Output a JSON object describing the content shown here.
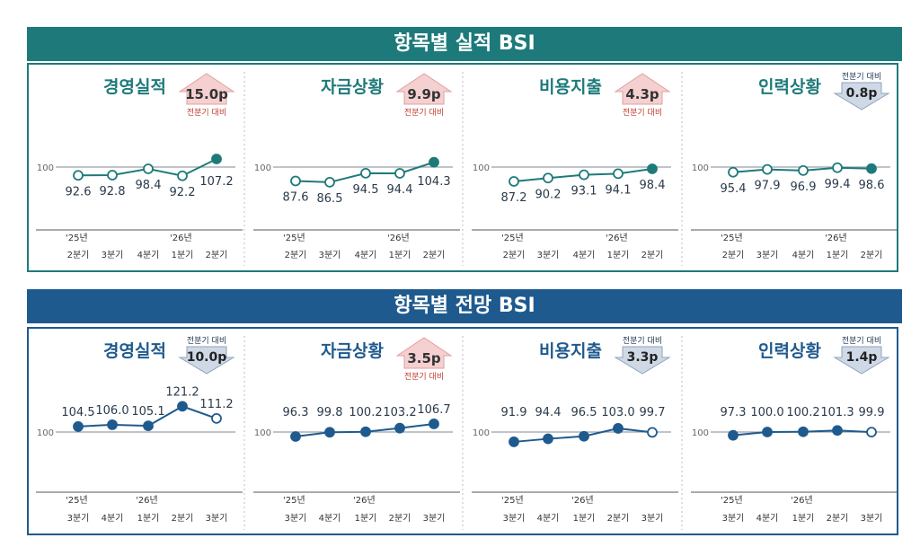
{
  "sections": [
    {
      "title": "항목별 실적 BSI",
      "color": "#1e7a7a",
      "axis_label": "100",
      "chart_data": [
        {
          "type": "line",
          "title": "경영실적",
          "change": {
            "direction": "up",
            "value": "15.0p",
            "label": "전분기 대비"
          },
          "categories": [
            "'25년 2분기",
            "3분기",
            "4분기",
            "'26년 1분기",
            "2분기"
          ],
          "year_labels": [
            "'25년",
            "",
            "",
            "'26년",
            ""
          ],
          "quarter_labels": [
            "2분기",
            "3분기",
            "4분기",
            "1분기",
            "2분기"
          ],
          "values": [
            92.6,
            92.8,
            98.4,
            92.2,
            107.2
          ],
          "reference": 100
        },
        {
          "type": "line",
          "title": "자금상황",
          "change": {
            "direction": "up",
            "value": "9.9p",
            "label": "전분기 대비"
          },
          "categories": [
            "'25년 2분기",
            "3분기",
            "4분기",
            "'26년 1분기",
            "2분기"
          ],
          "year_labels": [
            "'25년",
            "",
            "",
            "'26년",
            ""
          ],
          "quarter_labels": [
            "2분기",
            "3분기",
            "4분기",
            "1분기",
            "2분기"
          ],
          "values": [
            87.6,
            86.5,
            94.5,
            94.4,
            104.3
          ],
          "reference": 100
        },
        {
          "type": "line",
          "title": "비용지출",
          "change": {
            "direction": "up",
            "value": "4.3p",
            "label": "전분기 대비"
          },
          "categories": [
            "'25년 2분기",
            "3분기",
            "4분기",
            "'26년 1분기",
            "2분기"
          ],
          "year_labels": [
            "'25년",
            "",
            "",
            "'26년",
            ""
          ],
          "quarter_labels": [
            "2분기",
            "3분기",
            "4분기",
            "1분기",
            "2분기"
          ],
          "values": [
            87.2,
            90.2,
            93.1,
            94.1,
            98.4
          ],
          "reference": 100
        },
        {
          "type": "line",
          "title": "인력상황",
          "change": {
            "direction": "down",
            "value": "0.8p",
            "label": "전분기 대비"
          },
          "categories": [
            "'25년 2분기",
            "3분기",
            "4분기",
            "'26년 1분기",
            "2분기"
          ],
          "year_labels": [
            "'25년",
            "",
            "",
            "'26년",
            ""
          ],
          "quarter_labels": [
            "2분기",
            "3분기",
            "4분기",
            "1분기",
            "2분기"
          ],
          "values": [
            95.4,
            97.9,
            96.9,
            99.4,
            98.6
          ],
          "reference": 100
        }
      ]
    },
    {
      "title": "항목별 전망 BSI",
      "color": "#1f5a8e",
      "axis_label": "100",
      "chart_data": [
        {
          "type": "line",
          "title": "경영실적",
          "change": {
            "direction": "down",
            "value": "10.0p",
            "label": "전분기 대비"
          },
          "categories": [
            "'25년 3분기",
            "4분기",
            "'26년 1분기",
            "2분기",
            "3분기"
          ],
          "year_labels": [
            "'25년",
            "",
            "'26년",
            "",
            ""
          ],
          "quarter_labels": [
            "3분기",
            "4분기",
            "1분기",
            "2분기",
            "3분기"
          ],
          "values": [
            104.5,
            106.0,
            105.1,
            121.2,
            111.2
          ],
          "reference": 100
        },
        {
          "type": "line",
          "title": "자금상황",
          "change": {
            "direction": "up",
            "value": "3.5p",
            "label": "전분기 대비"
          },
          "categories": [
            "'25년 3분기",
            "4분기",
            "'26년 1분기",
            "2분기",
            "3분기"
          ],
          "year_labels": [
            "'25년",
            "",
            "'26년",
            "",
            ""
          ],
          "quarter_labels": [
            "3분기",
            "4분기",
            "1분기",
            "2분기",
            "3분기"
          ],
          "values": [
            96.3,
            99.8,
            100.2,
            103.2,
            106.7
          ],
          "reference": 100
        },
        {
          "type": "line",
          "title": "비용지출",
          "change": {
            "direction": "down",
            "value": "3.3p",
            "label": "전분기 대비"
          },
          "categories": [
            "'25년 3분기",
            "4분기",
            "'26년 1분기",
            "2분기",
            "3분기"
          ],
          "year_labels": [
            "'25년",
            "",
            "'26년",
            "",
            ""
          ],
          "quarter_labels": [
            "3분기",
            "4분기",
            "1분기",
            "2분기",
            "3분기"
          ],
          "values": [
            91.9,
            94.4,
            96.5,
            103.0,
            99.7
          ],
          "reference": 100
        },
        {
          "type": "line",
          "title": "인력상황",
          "change": {
            "direction": "down",
            "value": "1.4p",
            "label": "전분기 대비"
          },
          "categories": [
            "'25년 3분기",
            "4분기",
            "'26년 1분기",
            "2분기",
            "3분기"
          ],
          "year_labels": [
            "'25년",
            "",
            "'26년",
            "",
            ""
          ],
          "quarter_labels": [
            "3분기",
            "4분기",
            "1분기",
            "2분기",
            "3분기"
          ],
          "values": [
            97.3,
            100.0,
            100.2,
            101.3,
            99.9
          ],
          "reference": 100
        }
      ]
    }
  ],
  "colors": {
    "up_fill": "#f5d0d0",
    "up_text": "#c0392b",
    "down_fill": "#cfd9e6",
    "down_text": "#1f3550",
    "text_dark": "#222222",
    "axis_gray": "#9aa0a6"
  }
}
